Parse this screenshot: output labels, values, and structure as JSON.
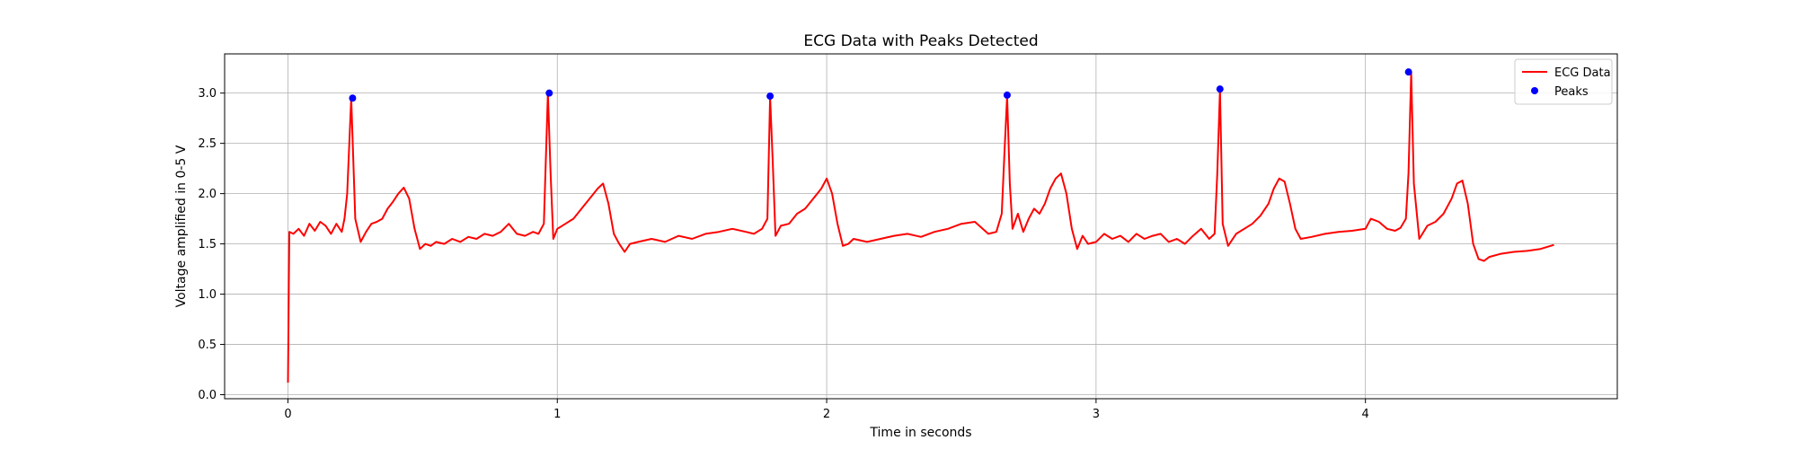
{
  "chart_data": {
    "type": "line",
    "title": "ECG Data with Peaks Detected",
    "xlabel": "Time in seconds",
    "ylabel": "Voltage amplified in 0-5 V",
    "xlim": [
      -0.235,
      4.935
    ],
    "ylim": [
      -0.04,
      3.39
    ],
    "xticks": [
      0,
      1,
      2,
      3,
      4
    ],
    "xtick_labels": [
      "0",
      "1",
      "2",
      "3",
      "4"
    ],
    "yticks": [
      0.0,
      0.5,
      1.0,
      1.5,
      2.0,
      2.5,
      3.0
    ],
    "ytick_labels": [
      "0.0",
      "0.5",
      "1.0",
      "1.5",
      "2.0",
      "2.5",
      "3.0"
    ],
    "grid": true,
    "legend": "top-right",
    "series": [
      {
        "name": "ECG Data",
        "kind": "line",
        "color": "#ff0000",
        "x": [
          0.0,
          0.005,
          0.02,
          0.04,
          0.06,
          0.08,
          0.1,
          0.12,
          0.14,
          0.16,
          0.18,
          0.2,
          0.21,
          0.22,
          0.235,
          0.25,
          0.27,
          0.29,
          0.31,
          0.33,
          0.35,
          0.37,
          0.39,
          0.41,
          0.43,
          0.45,
          0.47,
          0.49,
          0.51,
          0.53,
          0.55,
          0.58,
          0.61,
          0.64,
          0.67,
          0.7,
          0.73,
          0.76,
          0.79,
          0.82,
          0.85,
          0.88,
          0.91,
          0.93,
          0.95,
          0.965,
          0.975,
          0.985,
          1.0,
          1.03,
          1.06,
          1.09,
          1.12,
          1.15,
          1.17,
          1.19,
          1.21,
          1.23,
          1.25,
          1.27,
          1.3,
          1.35,
          1.4,
          1.45,
          1.5,
          1.55,
          1.6,
          1.65,
          1.7,
          1.73,
          1.76,
          1.78,
          1.79,
          1.8,
          1.81,
          1.83,
          1.86,
          1.89,
          1.92,
          1.95,
          1.98,
          2.0,
          2.02,
          2.04,
          2.06,
          2.08,
          2.1,
          2.15,
          2.2,
          2.25,
          2.3,
          2.35,
          2.4,
          2.45,
          2.5,
          2.55,
          2.6,
          2.63,
          2.65,
          2.66,
          2.67,
          2.68,
          2.69,
          2.71,
          2.73,
          2.75,
          2.77,
          2.79,
          2.81,
          2.83,
          2.85,
          2.87,
          2.89,
          2.91,
          2.93,
          2.95,
          2.97,
          3.0,
          3.03,
          3.06,
          3.09,
          3.12,
          3.15,
          3.18,
          3.21,
          3.24,
          3.27,
          3.3,
          3.33,
          3.36,
          3.39,
          3.42,
          3.44,
          3.45,
          3.46,
          3.47,
          3.49,
          3.52,
          3.55,
          3.58,
          3.61,
          3.64,
          3.66,
          3.68,
          3.7,
          3.72,
          3.74,
          3.76,
          3.8,
          3.85,
          3.9,
          3.95,
          4.0,
          4.02,
          4.05,
          4.08,
          4.11,
          4.13,
          4.15,
          4.16,
          4.17,
          4.18,
          4.2,
          4.23,
          4.26,
          4.29,
          4.32,
          4.34,
          4.36,
          4.38,
          4.4,
          4.42,
          4.44,
          4.46,
          4.5,
          4.55,
          4.6,
          4.65,
          4.7
        ],
        "y": [
          0.12,
          1.62,
          1.6,
          1.65,
          1.58,
          1.7,
          1.63,
          1.72,
          1.68,
          1.6,
          1.7,
          1.62,
          1.75,
          2.0,
          2.95,
          1.75,
          1.52,
          1.62,
          1.7,
          1.72,
          1.75,
          1.85,
          1.92,
          2.0,
          2.06,
          1.95,
          1.65,
          1.45,
          1.5,
          1.48,
          1.52,
          1.5,
          1.55,
          1.52,
          1.57,
          1.55,
          1.6,
          1.58,
          1.62,
          1.7,
          1.6,
          1.58,
          1.62,
          1.6,
          1.7,
          3.0,
          2.2,
          1.55,
          1.65,
          1.7,
          1.75,
          1.85,
          1.95,
          2.05,
          2.1,
          1.9,
          1.6,
          1.5,
          1.42,
          1.5,
          1.52,
          1.55,
          1.52,
          1.58,
          1.55,
          1.6,
          1.62,
          1.65,
          1.62,
          1.6,
          1.65,
          1.75,
          2.96,
          2.3,
          1.58,
          1.68,
          1.7,
          1.8,
          1.85,
          1.95,
          2.05,
          2.15,
          2.0,
          1.7,
          1.48,
          1.5,
          1.55,
          1.52,
          1.55,
          1.58,
          1.6,
          1.57,
          1.62,
          1.65,
          1.7,
          1.72,
          1.6,
          1.62,
          1.8,
          2.4,
          2.97,
          2.1,
          1.65,
          1.8,
          1.62,
          1.75,
          1.85,
          1.8,
          1.9,
          2.05,
          2.15,
          2.2,
          2.0,
          1.65,
          1.45,
          1.58,
          1.5,
          1.52,
          1.6,
          1.55,
          1.58,
          1.52,
          1.6,
          1.55,
          1.58,
          1.6,
          1.52,
          1.55,
          1.5,
          1.58,
          1.65,
          1.55,
          1.6,
          2.2,
          3.03,
          1.7,
          1.48,
          1.6,
          1.65,
          1.7,
          1.78,
          1.9,
          2.05,
          2.15,
          2.12,
          1.9,
          1.65,
          1.55,
          1.57,
          1.6,
          1.62,
          1.63,
          1.65,
          1.75,
          1.72,
          1.65,
          1.63,
          1.66,
          1.75,
          2.2,
          3.2,
          2.1,
          1.55,
          1.68,
          1.72,
          1.8,
          1.95,
          2.1,
          2.13,
          1.9,
          1.5,
          1.35,
          1.33,
          1.37,
          1.4,
          1.42,
          1.43,
          1.45,
          1.49
        ]
      },
      {
        "name": "Peaks",
        "kind": "scatter",
        "color": "#0000ff",
        "x": [
          0.24,
          0.97,
          1.79,
          2.67,
          3.46,
          4.16
        ],
        "y": [
          2.95,
          3.0,
          2.97,
          2.98,
          3.04,
          3.21
        ]
      }
    ]
  }
}
